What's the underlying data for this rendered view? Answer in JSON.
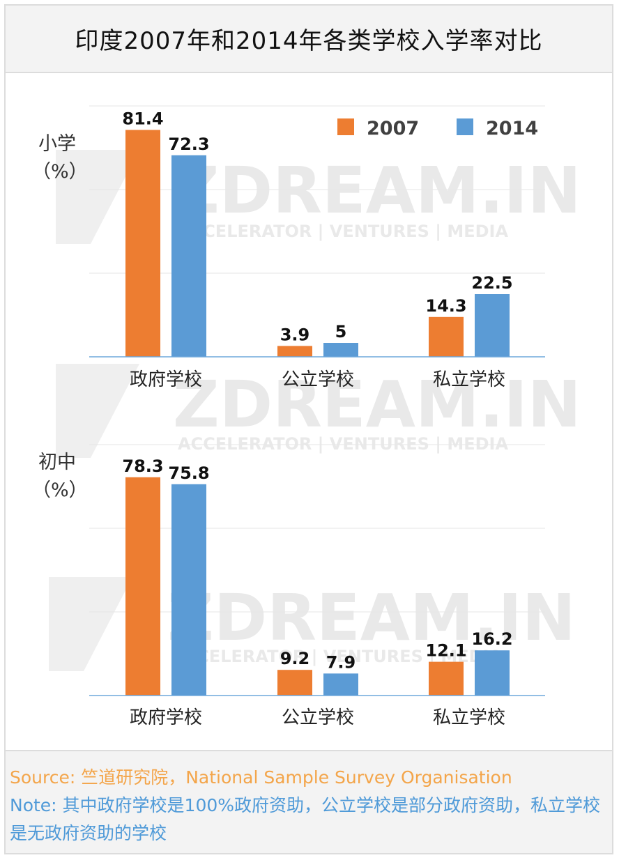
{
  "title": "印度2007年和2014年各类学校入学率对比",
  "chart_data": [
    {
      "type": "bar",
      "ylabel": "小学",
      "ylabel_unit": "（%）",
      "categories": [
        "政府学校",
        "公立学校",
        "私立学校"
      ],
      "series": [
        {
          "name": "2007",
          "values": [
            81.4,
            3.9,
            14.3
          ]
        },
        {
          "name": "2014",
          "values": [
            72.3,
            5,
            22.5
          ]
        }
      ],
      "ylim": [
        0,
        90
      ],
      "grid": true,
      "legend_position": "top-right"
    },
    {
      "type": "bar",
      "ylabel": "初中",
      "ylabel_unit": "（%）",
      "categories": [
        "政府学校",
        "公立学校",
        "私立学校"
      ],
      "series": [
        {
          "name": "2007",
          "values": [
            78.3,
            9.2,
            12.1
          ]
        },
        {
          "name": "2014",
          "values": [
            75.8,
            7.9,
            16.2
          ]
        }
      ],
      "ylim": [
        0,
        90
      ],
      "grid": true,
      "legend_position": "none"
    }
  ],
  "colors": {
    "series_2007": "#ed7d31",
    "series_2014": "#5b9bd5",
    "grid": "#e6e6e6",
    "axis": "#6fa8dc"
  },
  "watermark": {
    "brand": "ZDREAM.IN",
    "tagline": "ACCELERATOR | VENTURES | MEDIA"
  },
  "footer": {
    "source": "Source: 竺道研究院，National Sample Survey Organisation",
    "note": "Note: 其中政府学校是100%政府资助，公立学校是部分政府资助，私立学校是无政府资助的学校"
  }
}
